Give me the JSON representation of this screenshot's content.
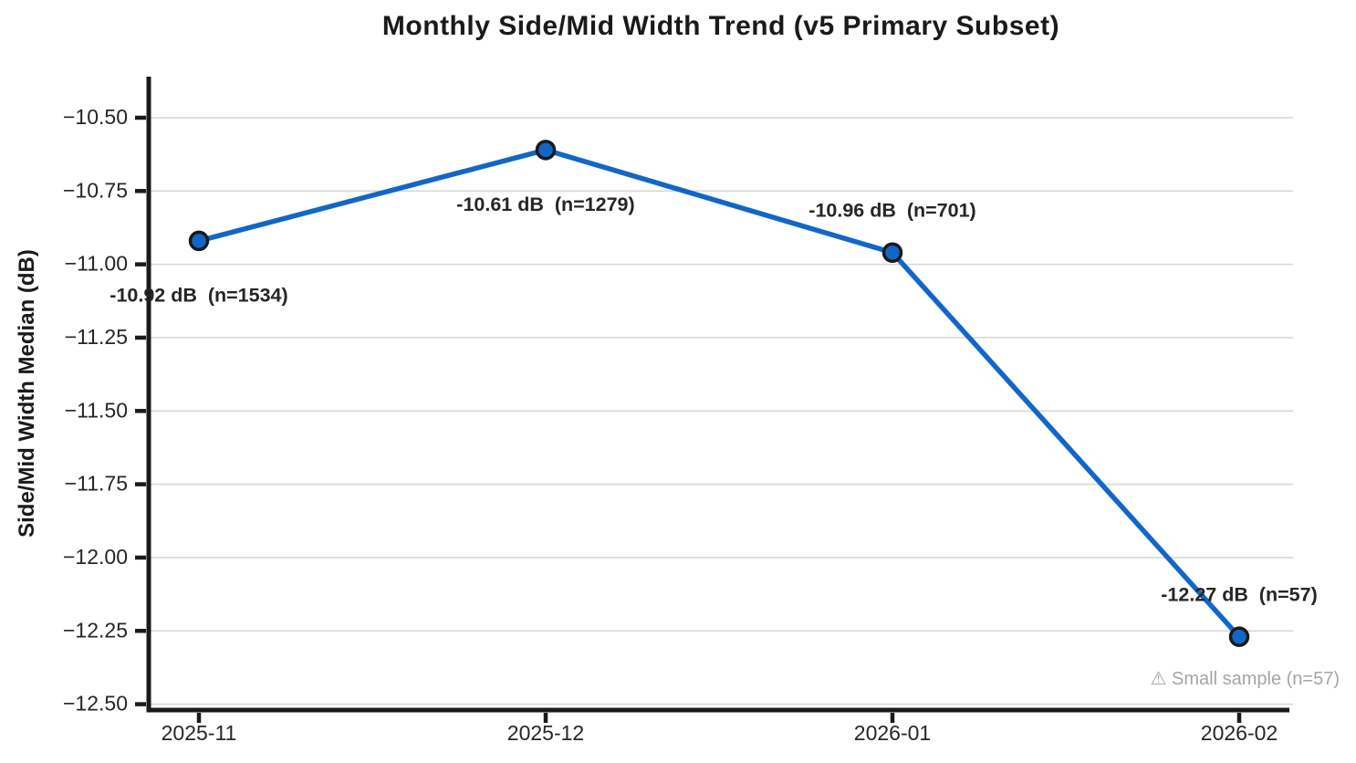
{
  "chart_data": {
    "type": "line",
    "title": "Monthly Side/Mid Width Trend (v5 Primary Subset)",
    "ylabel": "Side/Mid Width Median (dB)",
    "xlabel": "",
    "categories": [
      "2025-11",
      "2025-12",
      "2026-01",
      "2026-02"
    ],
    "values": [
      -10.92,
      -10.61,
      -10.96,
      -12.27
    ],
    "sample_sizes": [
      1534,
      1279,
      701,
      57
    ],
    "annotations": [
      {
        "text": "-10.92 dB  (n=1534)",
        "placement": "below"
      },
      {
        "text": "-10.61 dB  (n=1279)",
        "placement": "below"
      },
      {
        "text": "-10.96 dB  (n=701)",
        "placement": "above"
      },
      {
        "text": "-12.27 dB  (n=57)",
        "placement": "above"
      }
    ],
    "note": "⚠ Small sample (n=57)",
    "ylim": [
      -12.52,
      -10.36
    ],
    "yticks": [
      {
        "value": -10.5,
        "label": "−10.50"
      },
      {
        "value": -10.75,
        "label": "−10.75"
      },
      {
        "value": -11.0,
        "label": "−11.00"
      },
      {
        "value": -11.25,
        "label": "−11.25"
      },
      {
        "value": -11.5,
        "label": "−11.50"
      },
      {
        "value": -11.75,
        "label": "−11.75"
      },
      {
        "value": -12.0,
        "label": "−12.00"
      },
      {
        "value": -12.25,
        "label": "−12.25"
      },
      {
        "value": -12.5,
        "label": "−12.50"
      }
    ],
    "grid": "horizontal",
    "legend": "none",
    "colors": {
      "line": "#1266C8",
      "marker_fill": "#1266C8",
      "marker_edge": "#1a1a1a",
      "grid": "#d7d7d7",
      "axis": "#1a1a1a",
      "text": "#262626",
      "note": "#a5a5a5"
    }
  }
}
